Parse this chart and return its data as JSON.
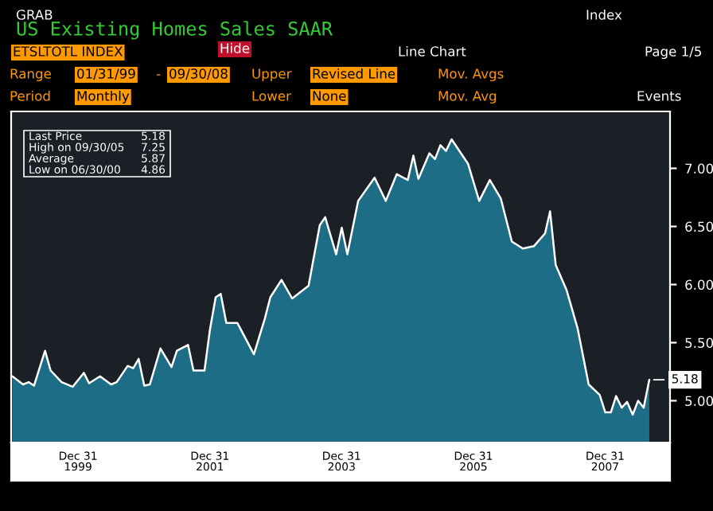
{
  "chart_data": {
    "type": "area",
    "title": "US Existing Homes Sales SAAR",
    "annotations": [
      "GRAB",
      "Index",
      "ETSLTOTL INDEX",
      "Hide",
      "Line Chart",
      "Page 1/5",
      "Range",
      "01/31/99",
      "-",
      "09/30/08",
      "Upper",
      "Revised Line",
      "Mov. Avgs",
      "Period",
      "Monthly",
      "Lower",
      "None",
      "Mov. Avg",
      "Events",
      "Last Price",
      "5.18",
      "High on 09/30/05",
      "7.25",
      "Average",
      "5.87",
      "Low on 06/30/00",
      "4.86",
      {
        "text": "5.18",
        "x": "2008-09",
        "y": 5.18
      }
    ],
    "series": [
      {
        "color": "#1e6d86",
        "x": [
          "1999-01",
          "1999-03",
          "1999-04",
          "1999-05",
          "1999-07",
          "1999-08",
          "1999-10",
          "1999-12",
          "2000-02",
          "2000-03",
          "2000-05",
          "2000-07",
          "2000-08",
          "2000-10",
          "2000-11",
          "2000-12",
          "2001-01",
          "2001-02",
          "2001-04",
          "2001-06",
          "2001-07",
          "2001-09",
          "2001-10",
          "2001-12",
          "2002-01",
          "2002-02",
          "2002-03",
          "2002-04",
          "2002-06",
          "2002-09",
          "2002-11",
          "2002-12",
          "2003-02",
          "2003-04",
          "2003-07",
          "2003-09",
          "2003-10",
          "2003-12",
          "2004-01",
          "2004-02",
          "2004-04",
          "2004-07",
          "2004-09",
          "2004-11",
          "2005-01",
          "2005-02",
          "2005-03",
          "2005-05",
          "2005-06",
          "2005-07",
          "2005-08",
          "2005-09",
          "2005-12",
          "2006-02",
          "2006-04",
          "2006-06",
          "2006-08",
          "2006-10",
          "2006-12",
          "2007-02",
          "2007-03",
          "2007-04",
          "2007-06",
          "2007-08",
          "2007-10",
          "2007-12",
          "2008-01",
          "2008-02",
          "2008-03",
          "2008-04",
          "2008-05",
          "2008-06",
          "2008-07",
          "2008-08",
          "2008-09"
        ],
        "values": [
          5.21,
          5.14,
          5.16,
          5.13,
          5.43,
          5.26,
          5.16,
          5.12,
          5.24,
          5.15,
          5.21,
          5.14,
          5.16,
          5.3,
          5.28,
          5.36,
          5.13,
          5.14,
          5.45,
          5.29,
          5.43,
          5.48,
          5.26,
          5.26,
          5.62,
          5.89,
          5.92,
          5.67,
          5.67,
          5.4,
          5.71,
          5.89,
          6.04,
          5.88,
          5.99,
          6.51,
          6.58,
          6.26,
          6.49,
          6.26,
          6.72,
          6.92,
          6.72,
          6.95,
          6.9,
          7.11,
          6.91,
          7.13,
          7.08,
          7.2,
          7.15,
          7.25,
          7.04,
          6.72,
          6.9,
          6.74,
          6.37,
          6.31,
          6.33,
          6.44,
          6.63,
          6.17,
          5.95,
          5.62,
          5.14,
          5.05,
          4.9,
          4.9,
          5.04,
          4.94,
          4.99,
          4.88,
          5.0,
          4.94,
          5.18
        ]
      }
    ],
    "xlim": [
      "1998-12-25",
      "2008-12-25"
    ],
    "xticks": [
      {
        "value": "1999-12-31",
        "label": "Dec 31\n1999"
      },
      {
        "value": "2001-12-31",
        "label": "Dec 31\n2001"
      },
      {
        "value": "2003-12-31",
        "label": "Dec 31\n2003"
      },
      {
        "value": "2005-12-31",
        "label": "Dec 31\n2005"
      },
      {
        "value": "2007-12-31",
        "label": "Dec 31\n2007"
      }
    ],
    "ylim": [
      4.64,
      7.49
    ],
    "yticks": [
      {
        "value": 5,
        "label": "5.00"
      },
      {
        "value": 5.5,
        "label": "5.50"
      },
      {
        "value": 6,
        "label": "6.00"
      },
      {
        "value": 6.5,
        "label": "6.50"
      },
      {
        "value": 7,
        "label": "7.00"
      }
    ],
    "grid": false
  }
}
